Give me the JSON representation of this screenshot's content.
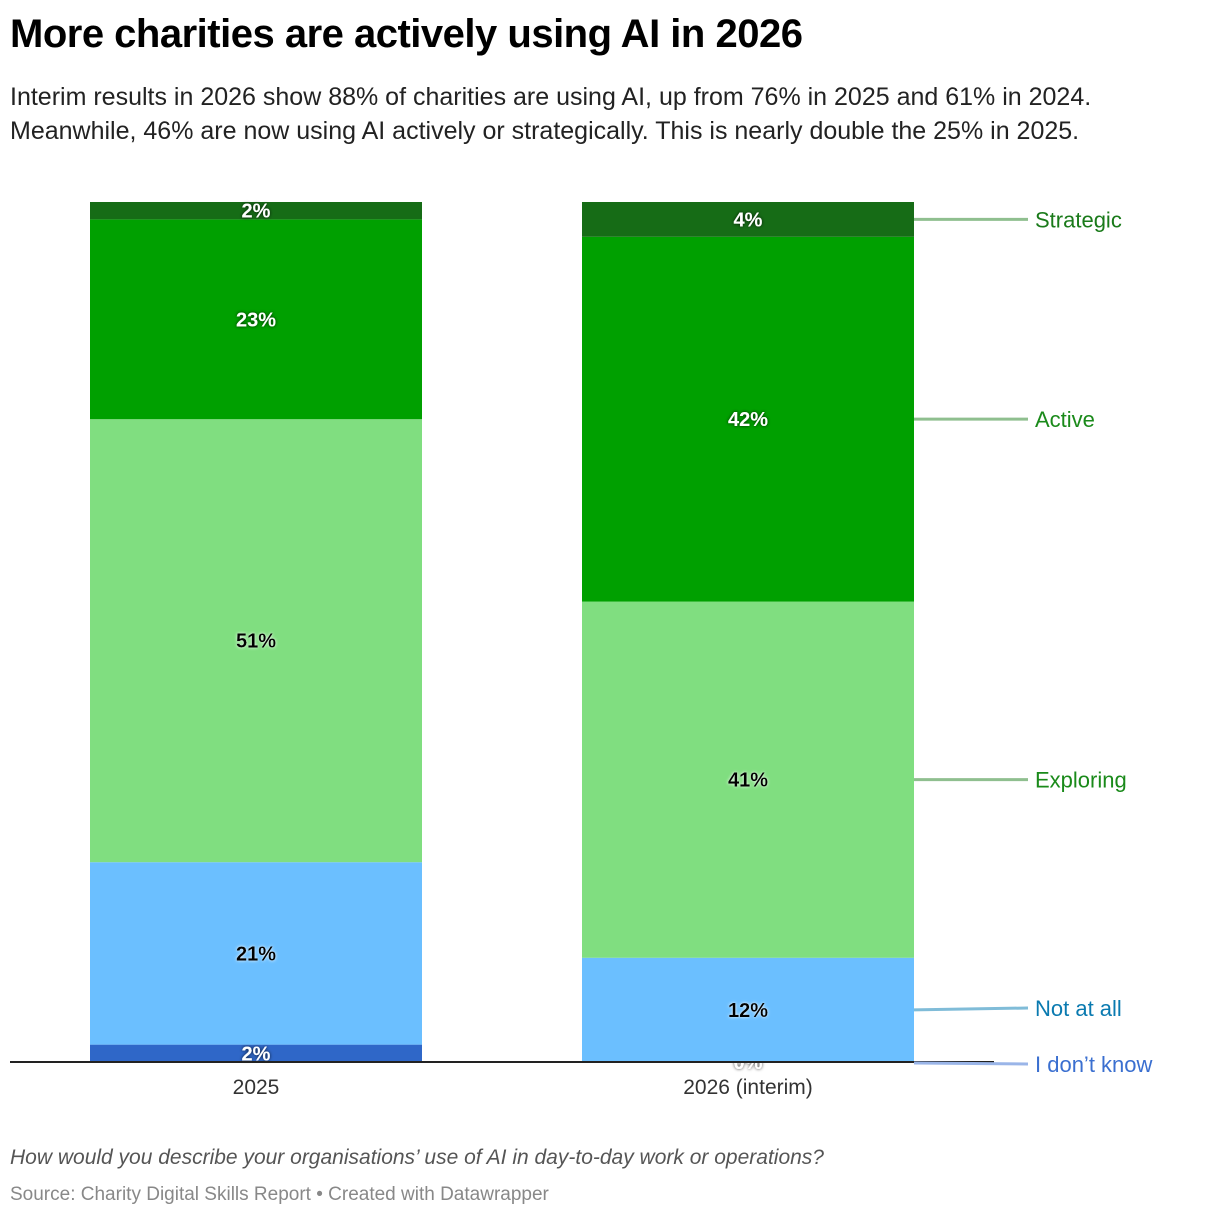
{
  "title": "More charities are actively using AI in 2026",
  "subtitle_lines": [
    "Interim results in 2026 show 88% of charities are using AI, up from 76% in 2025 and 61% in 2024.",
    "Meanwhile, 46% are now using AI actively or strategically. This is nearly double the 25% in 2025."
  ],
  "note": "How would you describe your organisations’ use of AI in day-to-day work or operations?",
  "source": "Source: Charity Digital Skills Report • Created with Datawrapper",
  "chart_data": {
    "type": "bar",
    "stacked": true,
    "orientation": "vertical",
    "categories": [
      "2025",
      "2026 (interim)"
    ],
    "ylim": [
      0,
      99
    ],
    "grid": false,
    "legend": "direct labels on right",
    "series": [
      {
        "name": "I don’t know",
        "values": [
          2,
          0
        ],
        "color": "#2f67c8",
        "label_color": "#3a6fd0",
        "line_color": "#9ab5e8"
      },
      {
        "name": "Not at all",
        "values": [
          21,
          12
        ],
        "color": "#6bbfff",
        "label_color": "#0a7ab0",
        "line_color": "#80bcd8"
      },
      {
        "name": "Exploring",
        "values": [
          51,
          41
        ],
        "color": "#80de80",
        "label_color": "#1a8a1a",
        "line_color": "#8fbf8f"
      },
      {
        "name": "Active",
        "values": [
          23,
          42
        ],
        "color": "#00a000",
        "label_color": "#1a8a1a",
        "line_color": "#8fbf8f"
      },
      {
        "name": "Strategic",
        "values": [
          2,
          4
        ],
        "color": "#166c16",
        "label_color": "#1a7a1a",
        "line_color": "#8fbf8f"
      }
    ],
    "value_suffix": "%"
  }
}
